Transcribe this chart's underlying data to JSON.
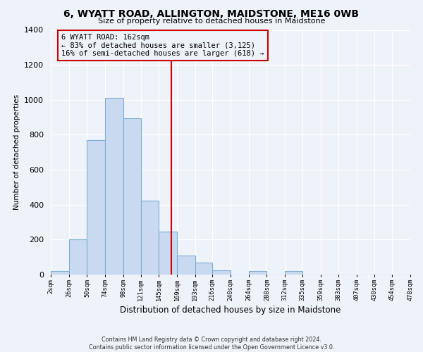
{
  "title": "6, WYATT ROAD, ALLINGTON, MAIDSTONE, ME16 0WB",
  "subtitle": "Size of property relative to detached houses in Maidstone",
  "xlabel": "Distribution of detached houses by size in Maidstone",
  "ylabel": "Number of detached properties",
  "bin_edges": [
    2,
    26,
    50,
    74,
    98,
    121,
    145,
    169,
    193,
    216,
    240,
    264,
    288,
    312,
    335,
    359,
    383,
    407,
    430,
    454,
    478
  ],
  "bin_heights": [
    20,
    200,
    770,
    1010,
    895,
    425,
    245,
    110,
    70,
    25,
    0,
    20,
    0,
    20,
    0,
    0,
    0,
    0,
    0,
    0
  ],
  "bar_color": "#c9daf0",
  "bar_edge_color": "#7bafd4",
  "vline_x": 162,
  "vline_color": "#cc0000",
  "annotation_title": "6 WYATT ROAD: 162sqm",
  "annotation_line1": "← 83% of detached houses are smaller (3,125)",
  "annotation_line2": "16% of semi-detached houses are larger (618) →",
  "annotation_box_edge": "#cc0000",
  "tick_labels": [
    "2sqm",
    "26sqm",
    "50sqm",
    "74sqm",
    "98sqm",
    "121sqm",
    "145sqm",
    "169sqm",
    "193sqm",
    "216sqm",
    "240sqm",
    "264sqm",
    "288sqm",
    "312sqm",
    "335sqm",
    "359sqm",
    "383sqm",
    "407sqm",
    "430sqm",
    "454sqm",
    "478sqm"
  ],
  "footer_line1": "Contains HM Land Registry data © Crown copyright and database right 2024.",
  "footer_line2": "Contains public sector information licensed under the Open Government Licence v3.0.",
  "ylim": [
    0,
    1400
  ],
  "background_color": "#eef2f9"
}
